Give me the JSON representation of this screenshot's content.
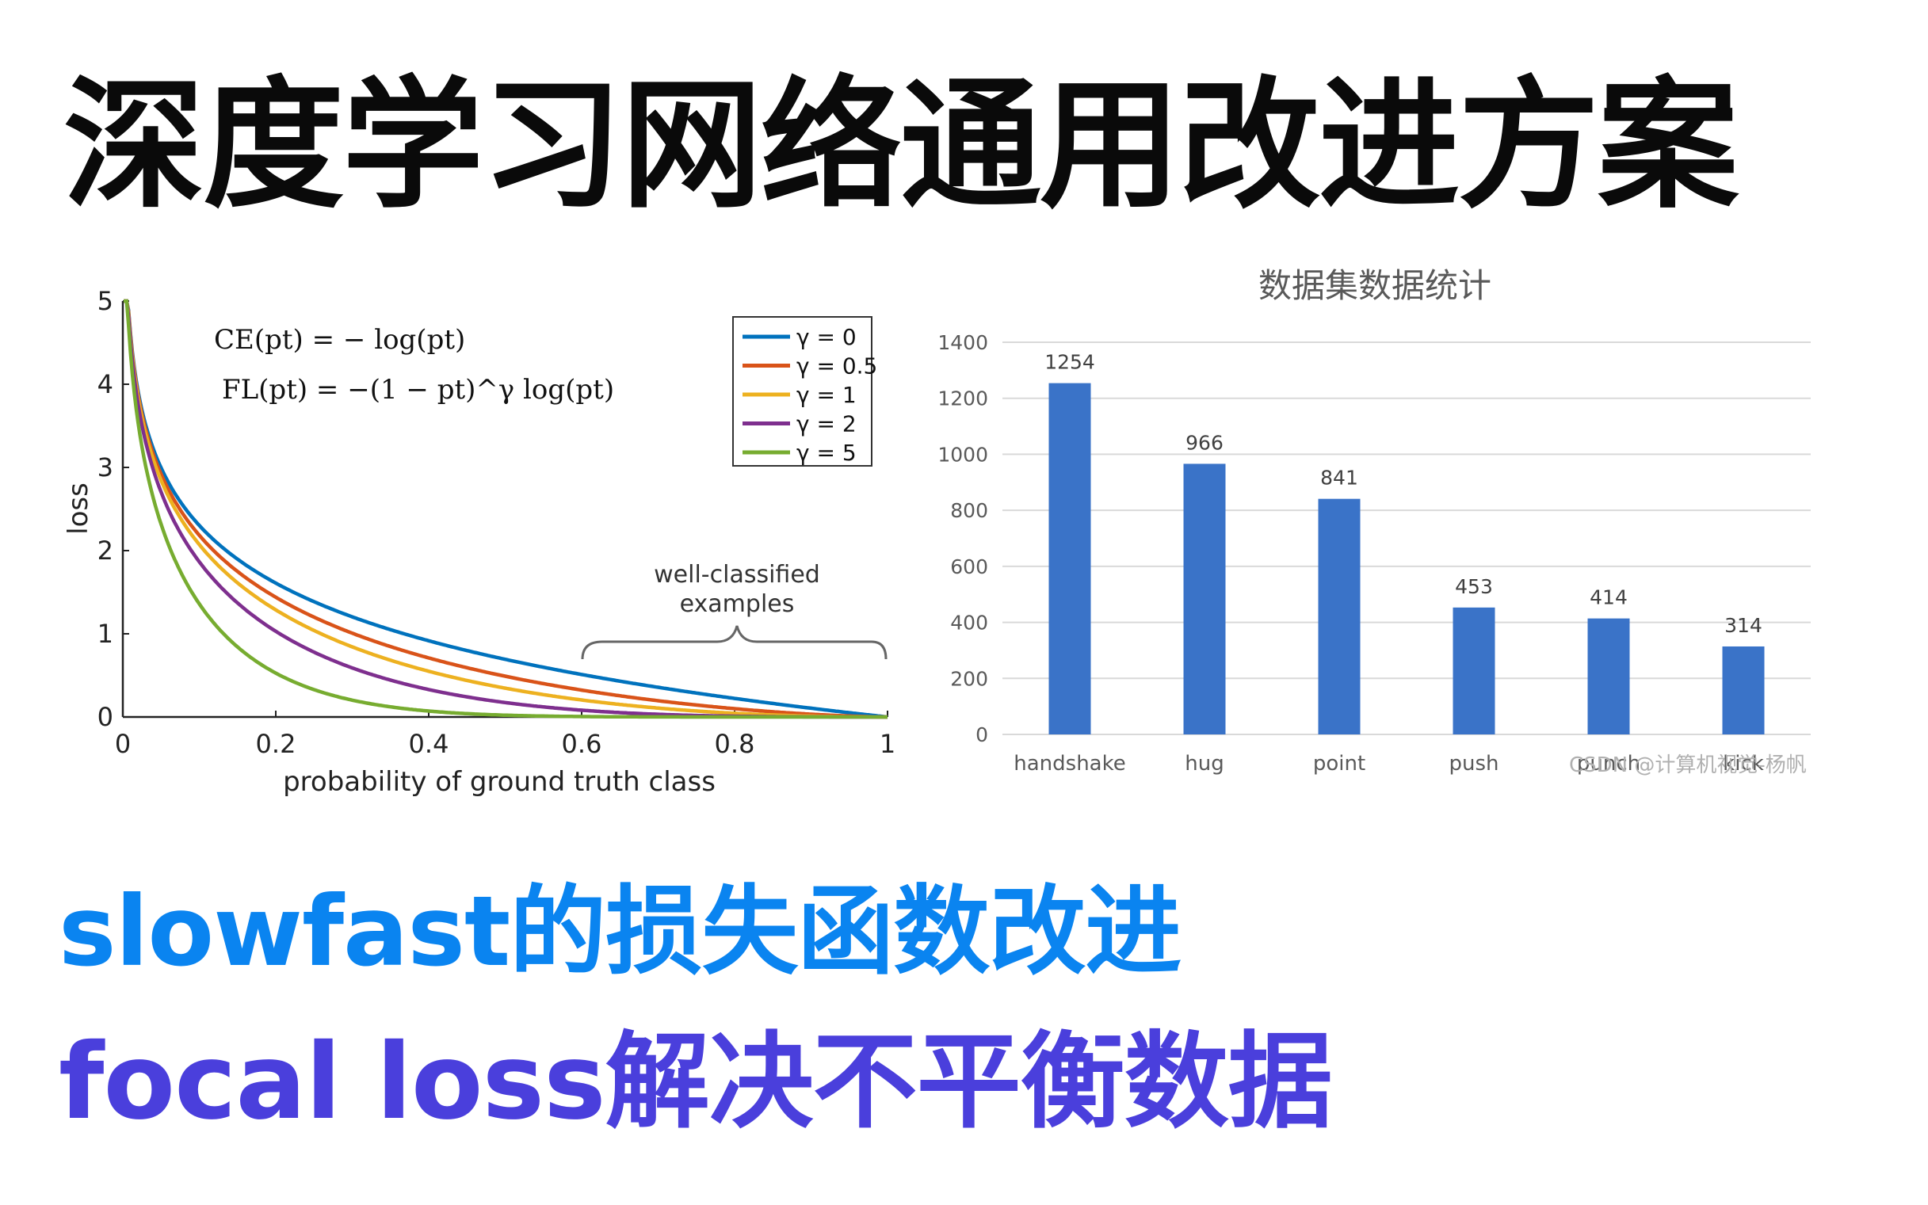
{
  "headline": "深度学习网络通用改进方案",
  "subtitle_1": "slowfast的损失函数改进",
  "subtitle_2": "focal loss解决不平衡数据",
  "watermark": "CSDN @计算机视觉-杨帆",
  "colors": {
    "headline": "#0a0a0a",
    "subtitle_1": "#0a84f0",
    "subtitle_2": "#4a3fdc",
    "bar": "#3a73c8"
  },
  "chart_data": [
    {
      "type": "line",
      "xlabel": "probability of ground truth class",
      "ylabel": "loss",
      "xlim": [
        0,
        1
      ],
      "ylim": [
        0,
        5
      ],
      "xticks": [
        "0",
        "0.2",
        "0.4",
        "0.6",
        "0.8",
        "1"
      ],
      "yticks": [
        "0",
        "1",
        "2",
        "3",
        "4",
        "5"
      ],
      "grid": false,
      "legend_position": "top-right",
      "formula_ce": "CE(pt) = − log(pt)",
      "formula_fl": "FL(pt) = −(1 − pt)^γ log(pt)",
      "annotation": [
        "well-classified",
        "examples"
      ],
      "series": [
        {
          "name": "γ = 0",
          "gamma": 0,
          "color": "#0072bd"
        },
        {
          "name": "γ = 0.5",
          "gamma": 0.5,
          "color": "#d95319"
        },
        {
          "name": "γ = 1",
          "gamma": 1,
          "color": "#edb120"
        },
        {
          "name": "γ = 2",
          "gamma": 2,
          "color": "#7e2f8e"
        },
        {
          "name": "γ = 5",
          "gamma": 5,
          "color": "#77ac30"
        }
      ]
    },
    {
      "type": "bar",
      "title": "数据集数据统计",
      "categories": [
        "handshake",
        "hug",
        "point",
        "push",
        "punch",
        "kick"
      ],
      "values": [
        1254,
        966,
        841,
        453,
        414,
        314
      ],
      "ylim": [
        0,
        1400
      ],
      "yticks": [
        "0",
        "200",
        "400",
        "600",
        "800",
        "1000",
        "1200",
        "1400"
      ],
      "grid": true
    }
  ]
}
